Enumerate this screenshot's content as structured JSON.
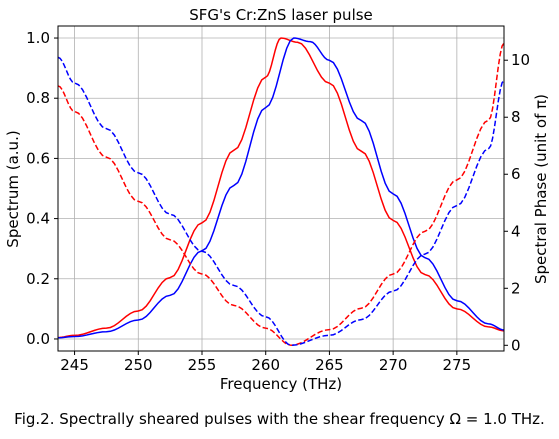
{
  "chart_data": {
    "type": "line",
    "title": "SFG's Cr:ZnS laser pulse",
    "xlabel": "Frequency (THz)",
    "ylabel_left": "Spectrum (a.u.)",
    "ylabel_right": "Spectral Phase (unit of π)",
    "xlim": [
      243.7,
      278.7
    ],
    "ylim_left": [
      -0.04,
      1.04
    ],
    "ylim_right": [
      -0.2,
      11.2
    ],
    "x_ticks": [
      245,
      250,
      255,
      260,
      265,
      270,
      275
    ],
    "y_left_ticks": [
      0.0,
      0.2,
      0.4,
      0.6,
      0.8,
      1.0
    ],
    "y_right_ticks": [
      0,
      2,
      4,
      6,
      8,
      10
    ],
    "grid": true,
    "series": [
      {
        "axis": "left",
        "color": "#ff0000",
        "dash": "solid",
        "x": [
          243.7,
          245,
          247.5,
          250,
          252.5,
          255,
          257.5,
          260,
          261.2,
          262.5,
          265,
          267.5,
          270,
          272.5,
          275,
          277.5,
          278.7
        ],
        "y": [
          0.005,
          0.012,
          0.036,
          0.093,
          0.204,
          0.386,
          0.627,
          0.87,
          1.0,
          0.986,
          0.85,
          0.624,
          0.394,
          0.214,
          0.1,
          0.04,
          0.027
        ]
      },
      {
        "axis": "left",
        "color": "#0000ff",
        "dash": "solid",
        "x": [
          243.7,
          245,
          247.5,
          250,
          252.5,
          255,
          257.5,
          260,
          262.2,
          263.5,
          265,
          267.5,
          270,
          272.5,
          275,
          277.5,
          278.7
        ],
        "y": [
          0.004,
          0.008,
          0.024,
          0.063,
          0.145,
          0.293,
          0.51,
          0.769,
          1.0,
          0.988,
          0.926,
          0.726,
          0.482,
          0.27,
          0.127,
          0.05,
          0.03
        ]
      },
      {
        "axis": "right",
        "color": "#ff0000",
        "dash": "dashed",
        "x": [
          243.7,
          245,
          247.5,
          250,
          252.5,
          255,
          257.5,
          260,
          262,
          265,
          267.5,
          270,
          272.5,
          275,
          277.5,
          278.7
        ],
        "y": [
          9.1,
          8.2,
          6.6,
          5.05,
          3.7,
          2.5,
          1.4,
          0.6,
          0.0,
          0.55,
          1.3,
          2.5,
          4.0,
          5.8,
          7.9,
          10.6
        ]
      },
      {
        "axis": "right",
        "color": "#0000ff",
        "dash": "dashed",
        "x": [
          243.7,
          245,
          247.5,
          250,
          252.5,
          255,
          257.5,
          260,
          262,
          265,
          267.5,
          270,
          272.5,
          275,
          277.5,
          278.7
        ],
        "y": [
          10.1,
          9.2,
          7.6,
          6.05,
          4.6,
          3.3,
          2.1,
          1.0,
          0.0,
          0.35,
          0.9,
          1.9,
          3.2,
          4.9,
          6.9,
          9.3
        ]
      }
    ]
  },
  "caption": "Fig.2. Spectrally sheared pulses with the shear frequency Ω = 1.0 THz."
}
